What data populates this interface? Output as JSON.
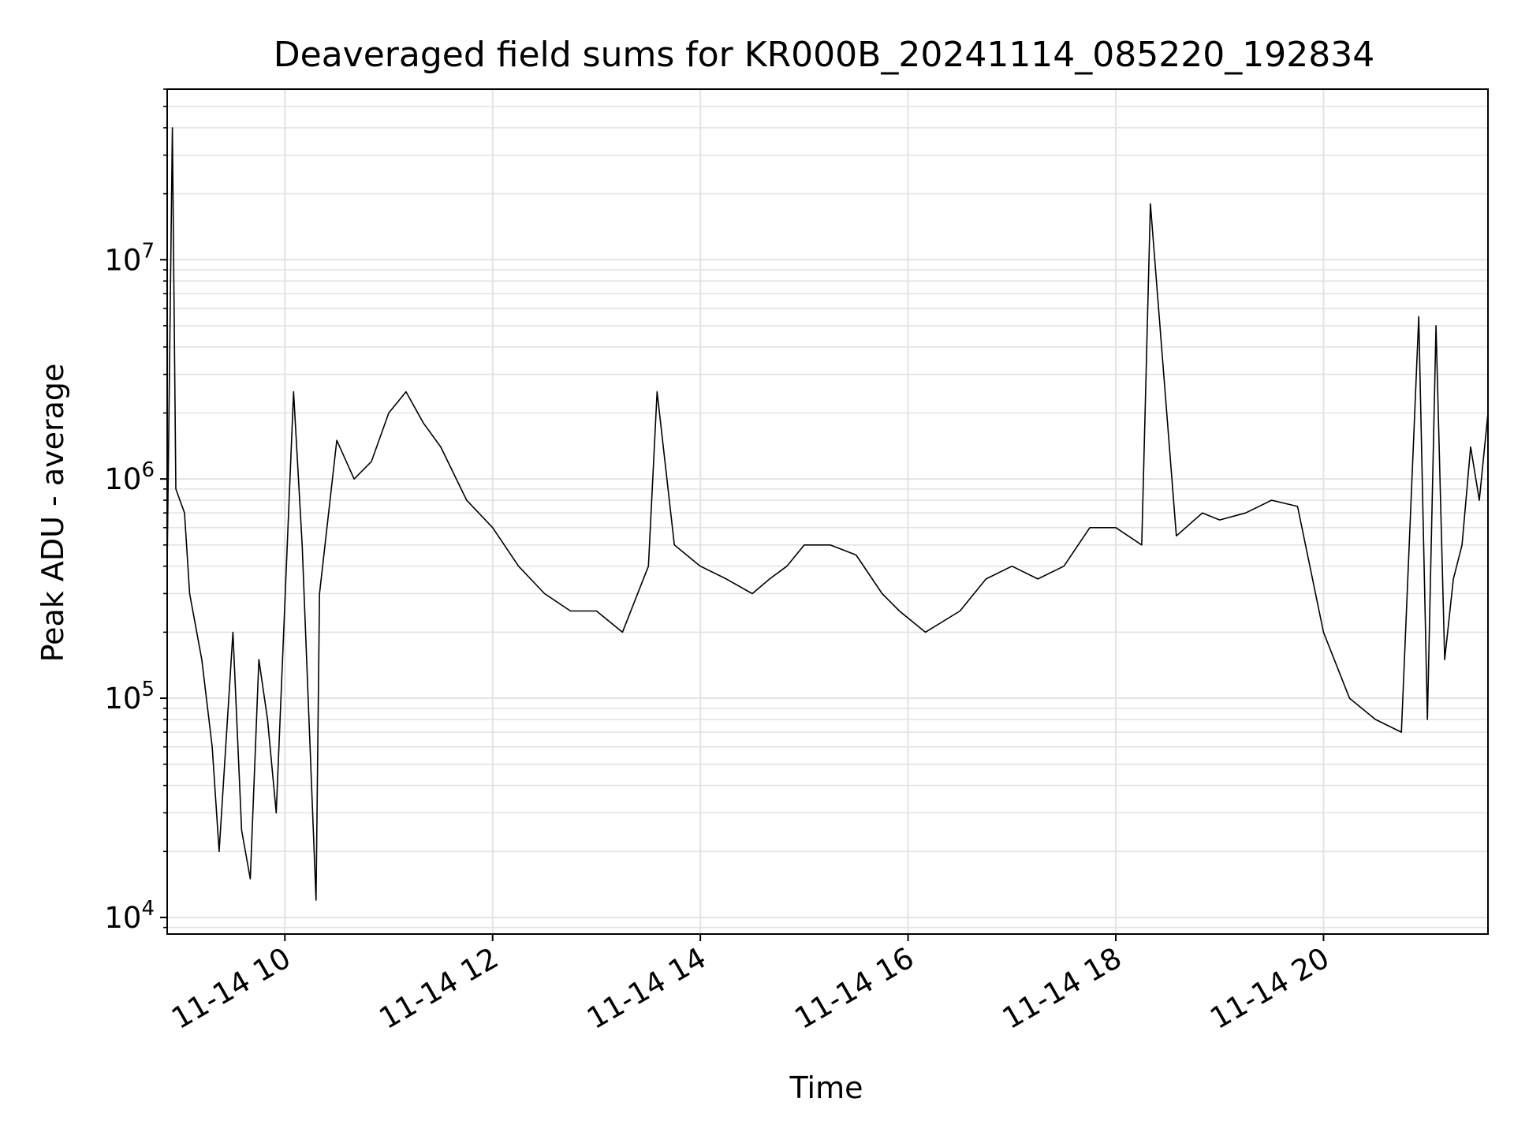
{
  "chart_data": {
    "type": "line",
    "title": "Deaveraged field sums for KR000B_20241114_085220_192834",
    "xlabel": "Time",
    "ylabel": "Peak ADU - average",
    "yscale": "log",
    "grid": true,
    "line_color": "#000000",
    "grid_color": "#e3e3e3",
    "xlim": [
      "2024-11-14 08:52",
      "2024-11-14 21:35"
    ],
    "ylim": [
      8400,
      60000000
    ],
    "x_ticks": [
      {
        "t": "2024-11-14 10:00",
        "label": "11-14 10"
      },
      {
        "t": "2024-11-14 12:00",
        "label": "11-14 12"
      },
      {
        "t": "2024-11-14 14:00",
        "label": "11-14 14"
      },
      {
        "t": "2024-11-14 16:00",
        "label": "11-14 16"
      },
      {
        "t": "2024-11-14 18:00",
        "label": "11-14 18"
      },
      {
        "t": "2024-11-14 20:00",
        "label": "11-14 20"
      }
    ],
    "y_ticks": [
      {
        "value": 10000,
        "base": "10",
        "exp": "4"
      },
      {
        "value": 100000,
        "base": "10",
        "exp": "5"
      },
      {
        "value": 1000000,
        "base": "10",
        "exp": "6"
      },
      {
        "value": 10000000,
        "base": "10",
        "exp": "7"
      }
    ],
    "series": [
      {
        "x": [
          "2024-11-14 08:52",
          "2024-11-14 08:55",
          "2024-11-14 08:57",
          "2024-11-14 09:02",
          "2024-11-14 09:05",
          "2024-11-14 09:12",
          "2024-11-14 09:18",
          "2024-11-14 09:22",
          "2024-11-14 09:30",
          "2024-11-14 09:35",
          "2024-11-14 09:40",
          "2024-11-14 09:45",
          "2024-11-14 09:50",
          "2024-11-14 09:55",
          "2024-11-14 10:05",
          "2024-11-14 10:10",
          "2024-11-14 10:18",
          "2024-11-14 10:20",
          "2024-11-14 10:30",
          "2024-11-14 10:40",
          "2024-11-14 10:50",
          "2024-11-14 11:00",
          "2024-11-14 11:10",
          "2024-11-14 11:20",
          "2024-11-14 11:30",
          "2024-11-14 11:45",
          "2024-11-14 12:00",
          "2024-11-14 12:15",
          "2024-11-14 12:30",
          "2024-11-14 12:45",
          "2024-11-14 13:00",
          "2024-11-14 13:15",
          "2024-11-14 13:30",
          "2024-11-14 13:35",
          "2024-11-14 13:45",
          "2024-11-14 14:00",
          "2024-11-14 14:15",
          "2024-11-14 14:30",
          "2024-11-14 14:40",
          "2024-11-14 14:50",
          "2024-11-14 15:00",
          "2024-11-14 15:15",
          "2024-11-14 15:30",
          "2024-11-14 15:45",
          "2024-11-14 15:55",
          "2024-11-14 16:10",
          "2024-11-14 16:30",
          "2024-11-14 16:45",
          "2024-11-14 17:00",
          "2024-11-14 17:15",
          "2024-11-14 17:30",
          "2024-11-14 17:45",
          "2024-11-14 18:00",
          "2024-11-14 18:15",
          "2024-11-14 18:20",
          "2024-11-14 18:35",
          "2024-11-14 18:50",
          "2024-11-14 19:00",
          "2024-11-14 19:15",
          "2024-11-14 19:30",
          "2024-11-14 19:45",
          "2024-11-14 20:00",
          "2024-11-14 20:15",
          "2024-11-14 20:30",
          "2024-11-14 20:45",
          "2024-11-14 20:55",
          "2024-11-14 21:00",
          "2024-11-14 21:05",
          "2024-11-14 21:10",
          "2024-11-14 21:15",
          "2024-11-14 21:20",
          "2024-11-14 21:25",
          "2024-11-14 21:30",
          "2024-11-14 21:35"
        ],
        "y": [
          400000,
          40000000,
          900000,
          700000,
          300000,
          150000,
          60000,
          20000,
          200000,
          25000,
          15000,
          150000,
          80000,
          30000,
          2500000,
          500000,
          12000,
          300000,
          1500000,
          1000000,
          1200000,
          2000000,
          2500000,
          1800000,
          1400000,
          800000,
          600000,
          400000,
          300000,
          250000,
          250000,
          200000,
          400000,
          2500000,
          500000,
          400000,
          350000,
          300000,
          350000,
          400000,
          500000,
          500000,
          450000,
          300000,
          250000,
          200000,
          250000,
          350000,
          400000,
          350000,
          400000,
          600000,
          600000,
          500000,
          18000000,
          550000,
          700000,
          650000,
          700000,
          800000,
          750000,
          200000,
          100000,
          80000,
          70000,
          5500000,
          80000,
          5000000,
          150000,
          350000,
          500000,
          1400000,
          800000,
          2000000
        ]
      }
    ]
  }
}
